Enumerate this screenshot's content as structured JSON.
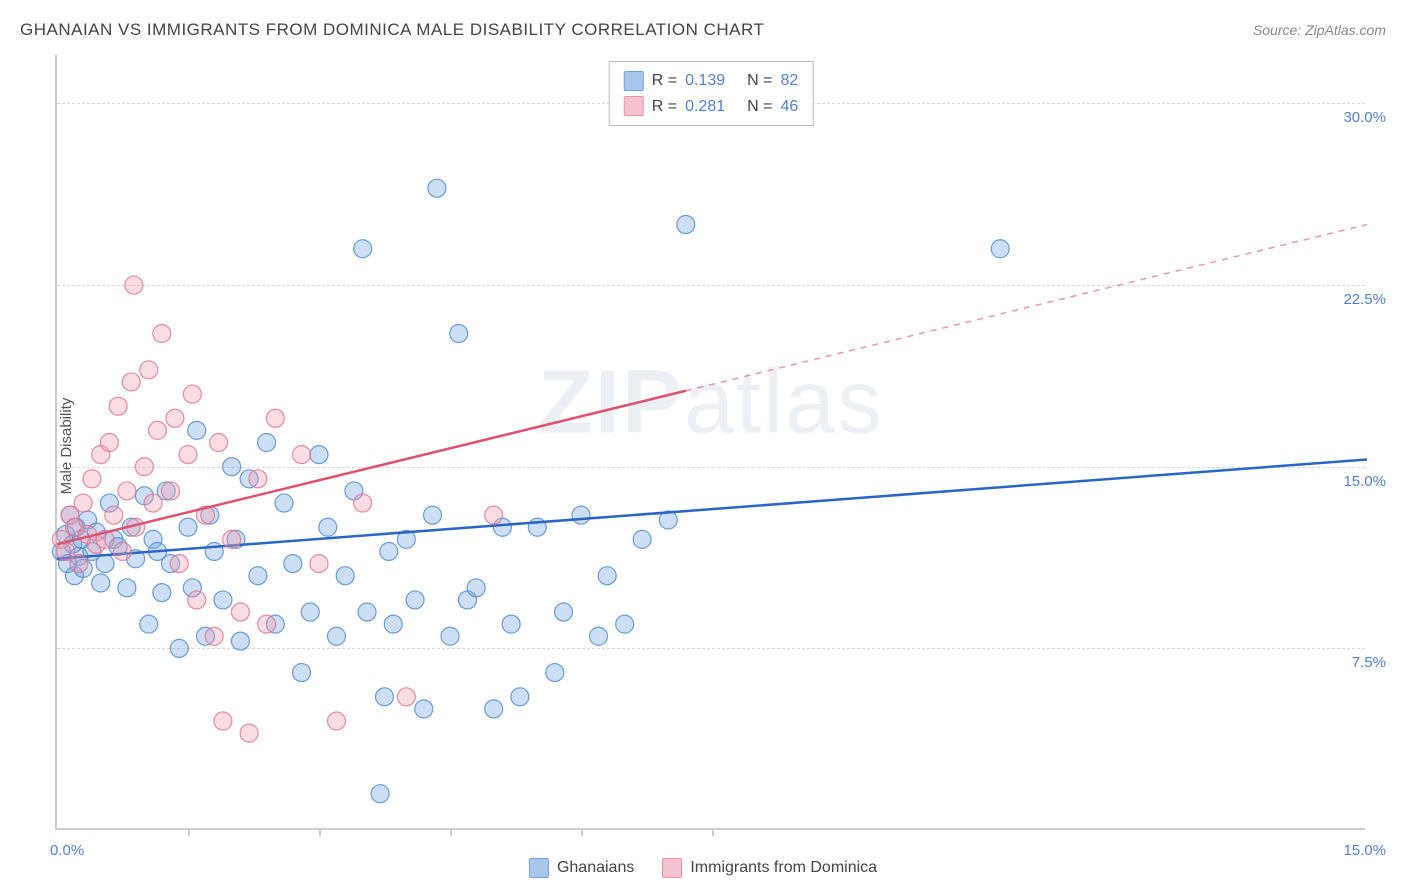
{
  "title": "GHANAIAN VS IMMIGRANTS FROM DOMINICA MALE DISABILITY CORRELATION CHART",
  "source": "Source: ZipAtlas.com",
  "watermark": "ZIPatlas",
  "y_axis_label": "Male Disability",
  "chart": {
    "type": "scatter",
    "xlim": [
      0,
      15
    ],
    "ylim": [
      0,
      32
    ],
    "x_ticks": [
      0,
      1.5,
      3.0,
      4.5,
      6.0,
      7.5
    ],
    "y_grid": [
      7.5,
      15.0,
      22.5,
      30.0
    ],
    "y_tick_labels": [
      "7.5%",
      "15.0%",
      "22.5%",
      "30.0%"
    ],
    "x_min_label": "0.0%",
    "x_max_label": "15.0%",
    "background_color": "#ffffff",
    "grid_color": "#d8d8d8",
    "axis_color": "#cccccc",
    "label_color": "#5181d0",
    "label_fontsize": 15,
    "title_fontsize": 17,
    "title_color": "#444444",
    "marker_radius": 9,
    "marker_fill_opacity": 0.35,
    "marker_stroke_opacity": 0.8,
    "marker_stroke_width": 1.2,
    "trend_line_width": 2.5
  },
  "series": [
    {
      "name": "Ghanaians",
      "color": "#6fa3e0",
      "stroke": "#4a86d0",
      "line_color": "#2b66c4",
      "R": "0.139",
      "N": "82",
      "trend": {
        "x1": 0,
        "y1": 11.2,
        "x2": 15,
        "y2": 15.3,
        "dash_after_x": null
      },
      "points": [
        [
          0.05,
          11.5
        ],
        [
          0.1,
          12.2
        ],
        [
          0.12,
          11.0
        ],
        [
          0.15,
          13.0
        ],
        [
          0.18,
          11.8
        ],
        [
          0.2,
          10.5
        ],
        [
          0.22,
          12.5
        ],
        [
          0.25,
          11.3
        ],
        [
          0.28,
          12.0
        ],
        [
          0.3,
          10.8
        ],
        [
          0.35,
          12.8
        ],
        [
          0.4,
          11.5
        ],
        [
          0.45,
          12.3
        ],
        [
          0.5,
          10.2
        ],
        [
          0.55,
          11.0
        ],
        [
          0.6,
          13.5
        ],
        [
          0.65,
          12.0
        ],
        [
          0.7,
          11.7
        ],
        [
          0.8,
          10.0
        ],
        [
          0.85,
          12.5
        ],
        [
          0.9,
          11.2
        ],
        [
          1.0,
          13.8
        ],
        [
          1.05,
          8.5
        ],
        [
          1.1,
          12.0
        ],
        [
          1.15,
          11.5
        ],
        [
          1.2,
          9.8
        ],
        [
          1.25,
          14.0
        ],
        [
          1.3,
          11.0
        ],
        [
          1.4,
          7.5
        ],
        [
          1.5,
          12.5
        ],
        [
          1.55,
          10.0
        ],
        [
          1.6,
          16.5
        ],
        [
          1.7,
          8.0
        ],
        [
          1.75,
          13.0
        ],
        [
          1.8,
          11.5
        ],
        [
          1.9,
          9.5
        ],
        [
          2.0,
          15.0
        ],
        [
          2.05,
          12.0
        ],
        [
          2.1,
          7.8
        ],
        [
          2.2,
          14.5
        ],
        [
          2.3,
          10.5
        ],
        [
          2.4,
          16.0
        ],
        [
          2.5,
          8.5
        ],
        [
          2.6,
          13.5
        ],
        [
          2.7,
          11.0
        ],
        [
          2.8,
          6.5
        ],
        [
          2.9,
          9.0
        ],
        [
          3.0,
          15.5
        ],
        [
          3.1,
          12.5
        ],
        [
          3.2,
          8.0
        ],
        [
          3.3,
          10.5
        ],
        [
          3.4,
          14.0
        ],
        [
          3.5,
          24.0
        ],
        [
          3.55,
          9.0
        ],
        [
          3.7,
          1.5
        ],
        [
          3.75,
          5.5
        ],
        [
          3.8,
          11.5
        ],
        [
          3.85,
          8.5
        ],
        [
          4.0,
          12.0
        ],
        [
          4.1,
          9.5
        ],
        [
          4.2,
          5.0
        ],
        [
          4.3,
          13.0
        ],
        [
          4.35,
          26.5
        ],
        [
          4.5,
          8.0
        ],
        [
          4.6,
          20.5
        ],
        [
          4.7,
          9.5
        ],
        [
          4.8,
          10.0
        ],
        [
          5.0,
          5.0
        ],
        [
          5.1,
          12.5
        ],
        [
          5.2,
          8.5
        ],
        [
          5.3,
          5.5
        ],
        [
          5.5,
          12.5
        ],
        [
          5.7,
          6.5
        ],
        [
          5.8,
          9.0
        ],
        [
          6.0,
          13.0
        ],
        [
          6.2,
          8.0
        ],
        [
          6.3,
          10.5
        ],
        [
          6.5,
          8.5
        ],
        [
          6.7,
          12.0
        ],
        [
          7.0,
          12.8
        ],
        [
          10.8,
          24.0
        ],
        [
          7.2,
          25.0
        ]
      ]
    },
    {
      "name": "Immigrants from Dominica",
      "color": "#f09cb0",
      "stroke": "#e07090",
      "line_color": "#e0506f",
      "R": "0.281",
      "N": "46",
      "trend": {
        "x1": 0,
        "y1": 11.8,
        "x2": 15,
        "y2": 25.0,
        "dash_after_x": 7.2
      },
      "points": [
        [
          0.05,
          12.0
        ],
        [
          0.1,
          11.5
        ],
        [
          0.15,
          13.0
        ],
        [
          0.2,
          12.5
        ],
        [
          0.25,
          11.0
        ],
        [
          0.3,
          13.5
        ],
        [
          0.35,
          12.2
        ],
        [
          0.4,
          14.5
        ],
        [
          0.45,
          11.8
        ],
        [
          0.5,
          15.5
        ],
        [
          0.55,
          12.0
        ],
        [
          0.6,
          16.0
        ],
        [
          0.65,
          13.0
        ],
        [
          0.7,
          17.5
        ],
        [
          0.75,
          11.5
        ],
        [
          0.8,
          14.0
        ],
        [
          0.85,
          18.5
        ],
        [
          0.88,
          22.5
        ],
        [
          0.9,
          12.5
        ],
        [
          1.0,
          15.0
        ],
        [
          1.05,
          19.0
        ],
        [
          1.1,
          13.5
        ],
        [
          1.15,
          16.5
        ],
        [
          1.2,
          20.5
        ],
        [
          1.3,
          14.0
        ],
        [
          1.35,
          17.0
        ],
        [
          1.4,
          11.0
        ],
        [
          1.5,
          15.5
        ],
        [
          1.55,
          18.0
        ],
        [
          1.6,
          9.5
        ],
        [
          1.7,
          13.0
        ],
        [
          1.8,
          8.0
        ],
        [
          1.85,
          16.0
        ],
        [
          1.9,
          4.5
        ],
        [
          2.0,
          12.0
        ],
        [
          2.1,
          9.0
        ],
        [
          2.2,
          4.0
        ],
        [
          2.3,
          14.5
        ],
        [
          2.4,
          8.5
        ],
        [
          2.5,
          17.0
        ],
        [
          2.8,
          15.5
        ],
        [
          3.0,
          11.0
        ],
        [
          3.2,
          4.5
        ],
        [
          3.5,
          13.5
        ],
        [
          4.0,
          5.5
        ],
        [
          5.0,
          13.0
        ]
      ]
    }
  ],
  "legend_bottom": [
    {
      "label": "Ghanaians",
      "swatch_fill": "#a8c5ea",
      "swatch_border": "#6fa3e0"
    },
    {
      "label": "Immigrants from Dominica",
      "swatch_fill": "#f5c2d0",
      "swatch_border": "#e890a8"
    }
  ]
}
